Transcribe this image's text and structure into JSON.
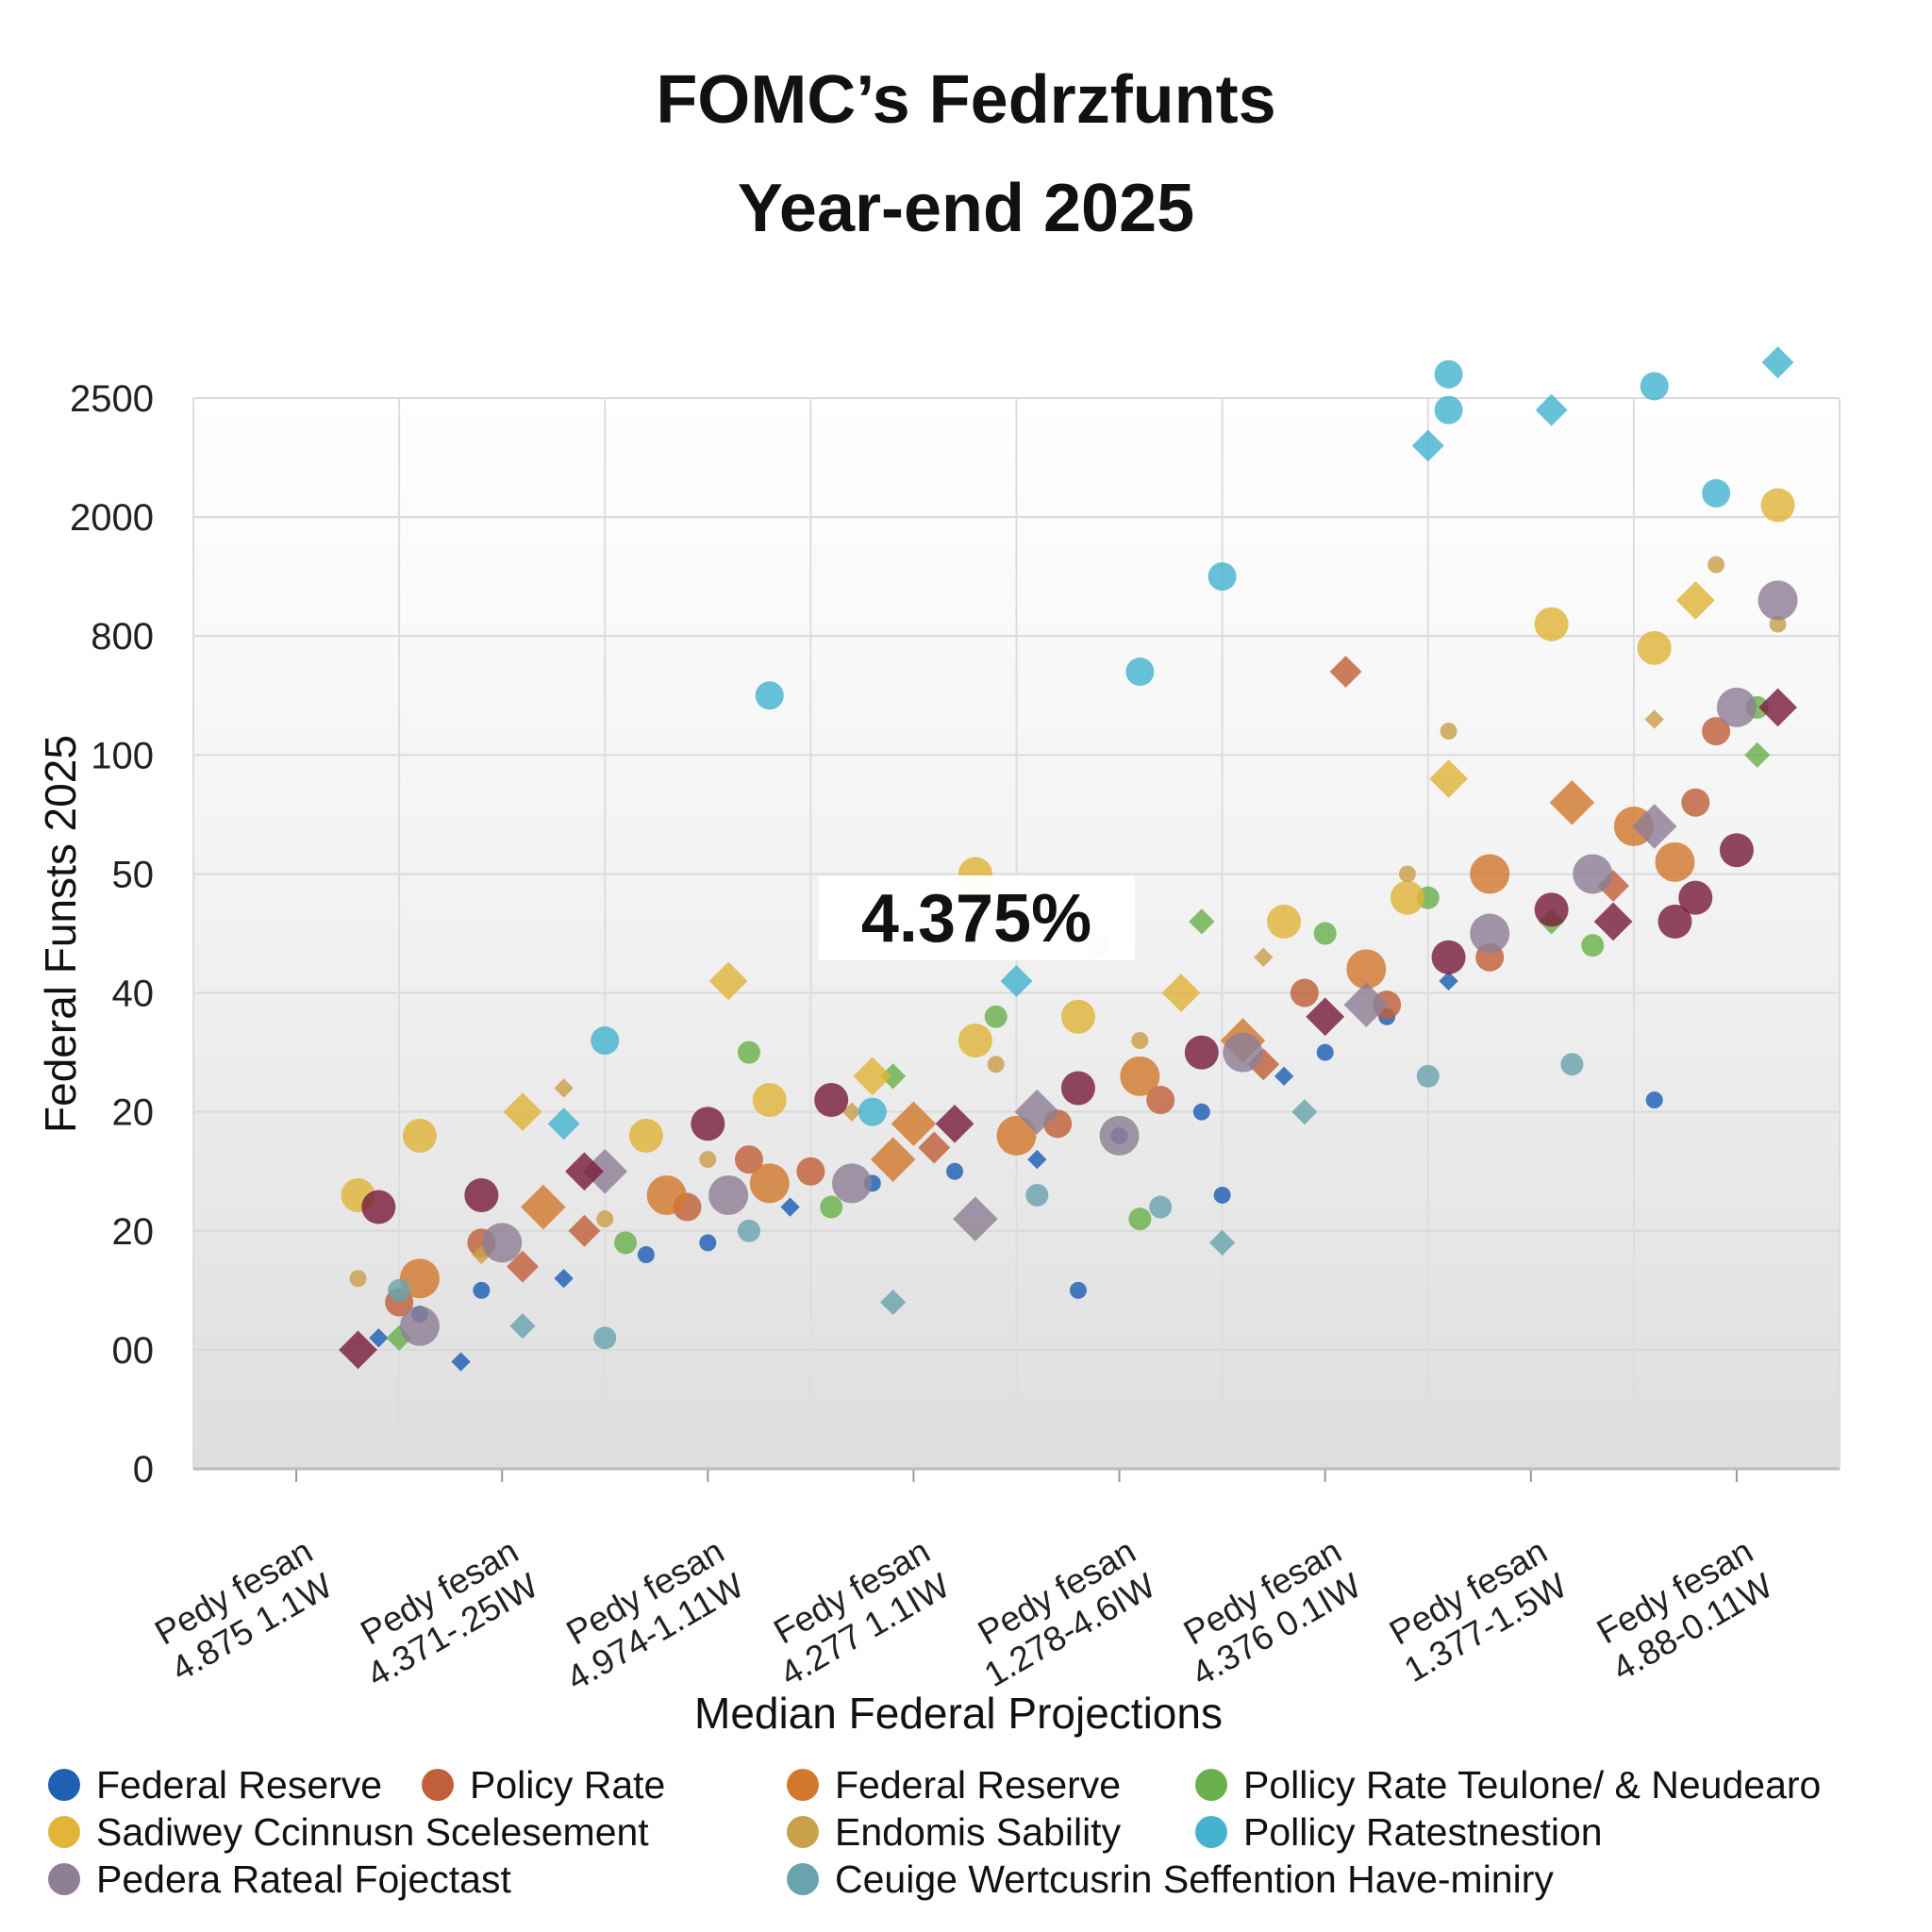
{
  "chart_data": {
    "type": "scatter",
    "title": "FOMC’s Fedrzfunts",
    "subtitle": "Year-end 2025",
    "xlabel": "Median Federal Projections",
    "ylabel": "Federal Funsts 2025",
    "y_ticks": [
      "2500",
      "2000",
      "800",
      "100",
      "50",
      "40",
      "20",
      "20",
      "00",
      "0"
    ],
    "categories": [
      [
        "Pedy fesan",
        "4.875 1.1W"
      ],
      [
        "Pedy fesan",
        "4.371-.25IW"
      ],
      [
        "Pedy fesan",
        "4.974-1.11W"
      ],
      [
        "Fedy fesan",
        "4.277 1.1IW"
      ],
      [
        "Pedy fesan",
        "1.278-4.6IW"
      ],
      [
        "Pedy fesan",
        "4.376 0.1IW"
      ],
      [
        "Pedy fesan",
        "1.377-1.5W"
      ],
      [
        "Fedy fesan",
        "4.88-0.11W"
      ]
    ],
    "annotation": "4.375%",
    "grid": true,
    "legend_position": "bottom",
    "series": [
      {
        "name": "Federal Reserve",
        "color": "#1f5fb4",
        "points": [
          [
            0.4,
            1.1
          ],
          [
            0.6,
            1.3
          ],
          [
            0.9,
            1.5
          ],
          [
            1.3,
            1.6
          ],
          [
            1.7,
            1.8
          ],
          [
            2.0,
            1.9
          ],
          [
            2.4,
            2.2
          ],
          [
            2.8,
            2.4
          ],
          [
            3.2,
            2.5
          ],
          [
            3.6,
            2.6
          ],
          [
            4.0,
            2.8
          ],
          [
            4.4,
            3.0
          ],
          [
            4.8,
            3.3
          ],
          [
            5.0,
            3.5
          ],
          [
            5.3,
            3.8
          ],
          [
            5.6,
            4.1
          ],
          [
            6.6,
            3.1
          ],
          [
            3.8,
            1.5
          ],
          [
            0.8,
            0.9
          ],
          [
            4.5,
            2.3
          ]
        ]
      },
      {
        "name": "Policy Rate",
        "color": "#c0603a",
        "points": [
          [
            0.5,
            1.4
          ],
          [
            0.9,
            1.9
          ],
          [
            1.4,
            2.0
          ],
          [
            1.9,
            2.2
          ],
          [
            2.5,
            2.5
          ],
          [
            3.1,
            2.7
          ],
          [
            3.7,
            2.9
          ],
          [
            4.2,
            3.1
          ],
          [
            4.7,
            3.4
          ],
          [
            5.3,
            3.9
          ],
          [
            5.8,
            4.3
          ],
          [
            6.4,
            4.9
          ],
          [
            6.8,
            5.6
          ],
          [
            6.9,
            6.2
          ],
          [
            5.1,
            6.7
          ],
          [
            4.9,
            4.0
          ],
          [
            2.2,
            2.6
          ],
          [
            1.1,
            1.7
          ]
        ]
      },
      {
        "name": "Federal Reserve",
        "color": "#d2792e",
        "points": [
          [
            0.6,
            1.6
          ],
          [
            1.2,
            2.2
          ],
          [
            1.8,
            2.3
          ],
          [
            2.3,
            2.4
          ],
          [
            2.9,
            2.6
          ],
          [
            3.5,
            2.8
          ],
          [
            4.1,
            3.3
          ],
          [
            4.6,
            3.6
          ],
          [
            5.2,
            4.2
          ],
          [
            5.8,
            5.0
          ],
          [
            6.2,
            5.6
          ],
          [
            6.5,
            5.4
          ],
          [
            6.7,
            5.1
          ],
          [
            3.0,
            2.9
          ]
        ]
      },
      {
        "name": "Pollicy Rate Teulone/ & Neudearo",
        "color": "#6ab04c",
        "points": [
          [
            0.5,
            1.1
          ],
          [
            1.6,
            1.9
          ],
          [
            2.2,
            3.5
          ],
          [
            2.9,
            3.3
          ],
          [
            3.4,
            3.8
          ],
          [
            3.9,
            4.4
          ],
          [
            4.4,
            4.6
          ],
          [
            5.0,
            4.5
          ],
          [
            5.5,
            4.8
          ],
          [
            6.1,
            4.6
          ],
          [
            6.3,
            4.4
          ],
          [
            7.1,
            6.4
          ],
          [
            7.1,
            6.0
          ],
          [
            4.1,
            2.1
          ],
          [
            2.6,
            2.2
          ]
        ]
      },
      {
        "name": "Sadiwey Ccinnusn Scelesement",
        "color": "#e0b53a",
        "points": [
          [
            0.3,
            2.3
          ],
          [
            0.6,
            2.8
          ],
          [
            1.1,
            3.0
          ],
          [
            1.7,
            2.8
          ],
          [
            2.3,
            3.1
          ],
          [
            2.8,
            3.3
          ],
          [
            3.3,
            3.6
          ],
          [
            3.8,
            3.8
          ],
          [
            4.3,
            4.0
          ],
          [
            4.8,
            4.6
          ],
          [
            5.4,
            4.8
          ],
          [
            5.6,
            5.8
          ],
          [
            6.1,
            7.1
          ],
          [
            6.6,
            6.9
          ],
          [
            6.8,
            7.3
          ],
          [
            7.2,
            8.1
          ],
          [
            3.3,
            5.0
          ],
          [
            2.1,
            4.1
          ]
        ]
      },
      {
        "name": "Endomis Sability",
        "color": "#c9a04c",
        "points": [
          [
            0.3,
            1.6
          ],
          [
            0.9,
            1.8
          ],
          [
            1.5,
            2.1
          ],
          [
            2.0,
            2.6
          ],
          [
            2.7,
            3.0
          ],
          [
            3.4,
            3.4
          ],
          [
            4.1,
            3.6
          ],
          [
            4.7,
            4.3
          ],
          [
            5.4,
            5.0
          ],
          [
            5.6,
            6.2
          ],
          [
            6.6,
            6.3
          ],
          [
            6.9,
            7.6
          ],
          [
            7.2,
            7.1
          ],
          [
            1.3,
            3.2
          ]
        ]
      },
      {
        "name": "Pollicy Ratestn​estion",
        "color": "#45b3cf",
        "points": [
          [
            1.3,
            2.9
          ],
          [
            1.5,
            3.6
          ],
          [
            2.8,
            3.0
          ],
          [
            3.5,
            4.1
          ],
          [
            4.1,
            6.7
          ],
          [
            4.5,
            7.5
          ],
          [
            5.5,
            8.6
          ],
          [
            5.6,
            8.9
          ],
          [
            5.6,
            9.2
          ],
          [
            6.1,
            8.9
          ],
          [
            6.6,
            9.1
          ],
          [
            6.9,
            8.2
          ],
          [
            7.2,
            9.3
          ],
          [
            2.3,
            6.5
          ]
        ]
      },
      {
        "name": "Pedera Rateal Fojectast",
        "color": "#8e7f95",
        "points": [
          [
            0.6,
            1.2
          ],
          [
            1.0,
            1.9
          ],
          [
            1.5,
            2.5
          ],
          [
            2.1,
            2.3
          ],
          [
            2.7,
            2.4
          ],
          [
            3.3,
            2.1
          ],
          [
            4.0,
            2.8
          ],
          [
            4.6,
            3.5
          ],
          [
            5.2,
            3.9
          ],
          [
            5.8,
            4.5
          ],
          [
            6.3,
            5.0
          ],
          [
            6.6,
            5.4
          ],
          [
            7.0,
            6.4
          ],
          [
            7.2,
            7.3
          ],
          [
            3.6,
            3.0
          ]
        ]
      },
      {
        "name": "Ceuige Wertcusrin Seffention Have-miniry",
        "color": "#6aa3ad",
        "points": [
          [
            0.5,
            1.5
          ],
          [
            1.1,
            1.2
          ],
          [
            1.5,
            1.1
          ],
          [
            2.2,
            2.0
          ],
          [
            2.9,
            1.4
          ],
          [
            3.6,
            2.3
          ],
          [
            4.2,
            2.2
          ],
          [
            4.9,
            3.0
          ],
          [
            5.5,
            3.3
          ],
          [
            6.2,
            3.4
          ],
          [
            4.5,
            1.9
          ]
        ]
      },
      {
        "name": "",
        "color": "#7a1f3d",
        "points": [
          [
            0.3,
            1.0
          ],
          [
            0.4,
            2.2
          ],
          [
            0.9,
            2.3
          ],
          [
            1.4,
            2.5
          ],
          [
            2.0,
            2.9
          ],
          [
            2.6,
            3.1
          ],
          [
            3.2,
            2.9
          ],
          [
            3.8,
            3.2
          ],
          [
            4.4,
            3.5
          ],
          [
            5.0,
            3.8
          ],
          [
            5.6,
            4.3
          ],
          [
            6.1,
            4.7
          ],
          [
            6.4,
            4.6
          ],
          [
            6.7,
            4.6
          ],
          [
            7.0,
            5.2
          ],
          [
            7.2,
            6.4
          ],
          [
            6.8,
            4.8
          ]
        ]
      }
    ]
  },
  "legend": [
    {
      "label": "Federal Reserve",
      "color": "#1f5fb4"
    },
    {
      "label": "Policy Rate",
      "color": "#c0603a"
    },
    {
      "label": "Federal Reserve",
      "color": "#d2792e"
    },
    {
      "label": "Pollicy Rate Teulone/ & Neudearo",
      "color": "#6ab04c"
    },
    {
      "label": "Sadiwey Ccinnusn Scelesement",
      "color": "#e0b53a"
    },
    {
      "label": "Endomis Sability",
      "color": "#c9a04c"
    },
    {
      "label": "Pollicy Ratestnestion",
      "color": "#45b3cf"
    },
    {
      "label": "Pedera Rateal Fojectast",
      "color": "#8e7f95"
    },
    {
      "label": "Ceuige Wertcusrin Seffention Have-miniry",
      "color": "#6aa3ad"
    }
  ]
}
